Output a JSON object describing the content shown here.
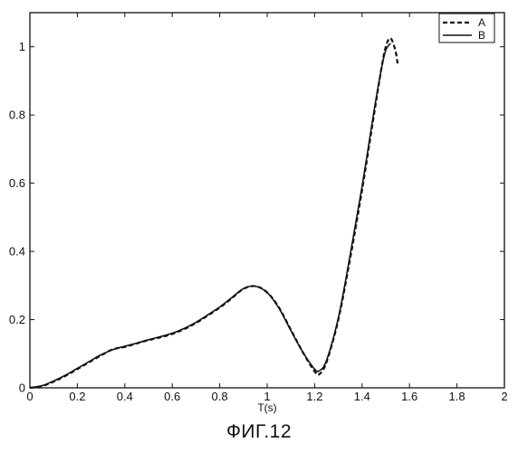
{
  "caption": "ФИГ.12",
  "chart_data": {
    "type": "line",
    "title": "",
    "xlabel": "T(s)",
    "ylabel": "",
    "xlim": [
      0,
      2
    ],
    "ylim": [
      0,
      1.1
    ],
    "xticks": [
      0,
      0.2,
      0.4,
      0.6,
      0.8,
      1,
      1.2,
      1.4,
      1.6,
      1.8,
      2
    ],
    "yticks": [
      0,
      0.2,
      0.4,
      0.6,
      0.8,
      1
    ],
    "xtick_labels": [
      "0",
      "0.2",
      "0.4",
      "0.6",
      "0.8",
      "1",
      "1.2",
      "1.4",
      "1.6",
      "1.8",
      "2"
    ],
    "ytick_labels": [
      "0",
      "0.2",
      "0.4",
      "0.6",
      "0.8",
      "1"
    ],
    "grid": false,
    "legend_position": "top-right",
    "series": [
      {
        "name": "A",
        "style": "dashed",
        "color": "#111111",
        "x": [
          0,
          0.05,
          0.1,
          0.15,
          0.2,
          0.25,
          0.3,
          0.35,
          0.4,
          0.45,
          0.5,
          0.55,
          0.6,
          0.65,
          0.7,
          0.75,
          0.8,
          0.85,
          0.9,
          0.95,
          1.0,
          1.05,
          1.1,
          1.15,
          1.2,
          1.22,
          1.25,
          1.3,
          1.35,
          1.4,
          1.45,
          1.48,
          1.5,
          1.52,
          1.54,
          1.55
        ],
        "y": [
          0,
          0.005,
          0.018,
          0.035,
          0.055,
          0.075,
          0.095,
          0.113,
          0.12,
          0.13,
          0.14,
          0.148,
          0.158,
          0.172,
          0.19,
          0.212,
          0.235,
          0.262,
          0.29,
          0.298,
          0.28,
          0.235,
          0.17,
          0.105,
          0.048,
          0.04,
          0.075,
          0.2,
          0.38,
          0.58,
          0.8,
          0.93,
          1.0,
          1.025,
          0.99,
          0.95
        ]
      },
      {
        "name": "B",
        "style": "solid",
        "color": "#111111",
        "x": [
          0,
          0.05,
          0.1,
          0.15,
          0.2,
          0.25,
          0.3,
          0.35,
          0.4,
          0.45,
          0.5,
          0.55,
          0.6,
          0.65,
          0.7,
          0.75,
          0.8,
          0.85,
          0.9,
          0.95,
          1.0,
          1.05,
          1.1,
          1.15,
          1.2,
          1.22,
          1.25,
          1.3,
          1.35,
          1.4,
          1.45,
          1.48,
          1.5,
          1.52
        ],
        "y": [
          0,
          0.006,
          0.02,
          0.037,
          0.057,
          0.077,
          0.097,
          0.112,
          0.122,
          0.131,
          0.141,
          0.15,
          0.16,
          0.174,
          0.192,
          0.214,
          0.237,
          0.264,
          0.291,
          0.298,
          0.279,
          0.233,
          0.168,
          0.105,
          0.055,
          0.05,
          0.08,
          0.205,
          0.39,
          0.59,
          0.81,
          0.93,
          0.99,
          1.01
        ]
      }
    ]
  }
}
